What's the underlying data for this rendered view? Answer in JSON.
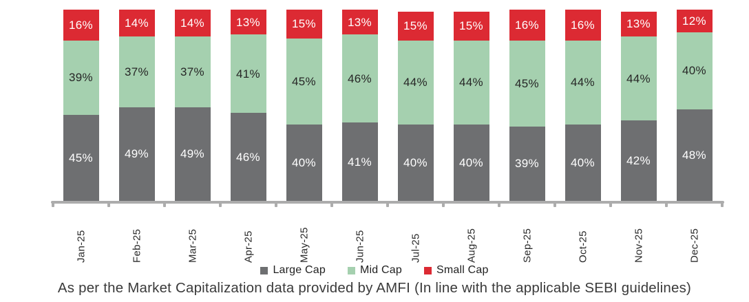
{
  "chart_data": {
    "type": "bar",
    "stacked": true,
    "orientation": "vertical",
    "categories": [
      "Jan-25",
      "Feb-25",
      "Mar-25",
      "Apr-25",
      "May-25",
      "Jun-25",
      "Jul-25",
      "Aug-25",
      "Sep-25",
      "Oct-25",
      "Nov-25",
      "Dec-25"
    ],
    "series": [
      {
        "name": "Large Cap",
        "color": "#6e6f71",
        "label_color": "#ffffff",
        "values": [
          45,
          49,
          49,
          46,
          40,
          41,
          40,
          40,
          39,
          40,
          42,
          48
        ]
      },
      {
        "name": "Mid Cap",
        "color": "#a5d0af",
        "label_color": "#262626",
        "values": [
          39,
          37,
          37,
          41,
          45,
          46,
          44,
          44,
          45,
          44,
          44,
          40
        ]
      },
      {
        "name": "Small Cap",
        "color": "#dc2a33",
        "label_color": "#ffffff",
        "values": [
          16,
          14,
          14,
          13,
          15,
          13,
          15,
          15,
          16,
          16,
          13,
          12
        ]
      }
    ],
    "value_suffix": "%",
    "ylim": [
      0,
      100
    ],
    "grid": false,
    "y_axis_visible": false,
    "legend_position": "bottom",
    "axis_color": "#acacac",
    "x_label_rotation_deg": -90
  },
  "caption": "As per the Market Capitalization data provided by AMFI (In line with the applicable SEBI guidelines)"
}
